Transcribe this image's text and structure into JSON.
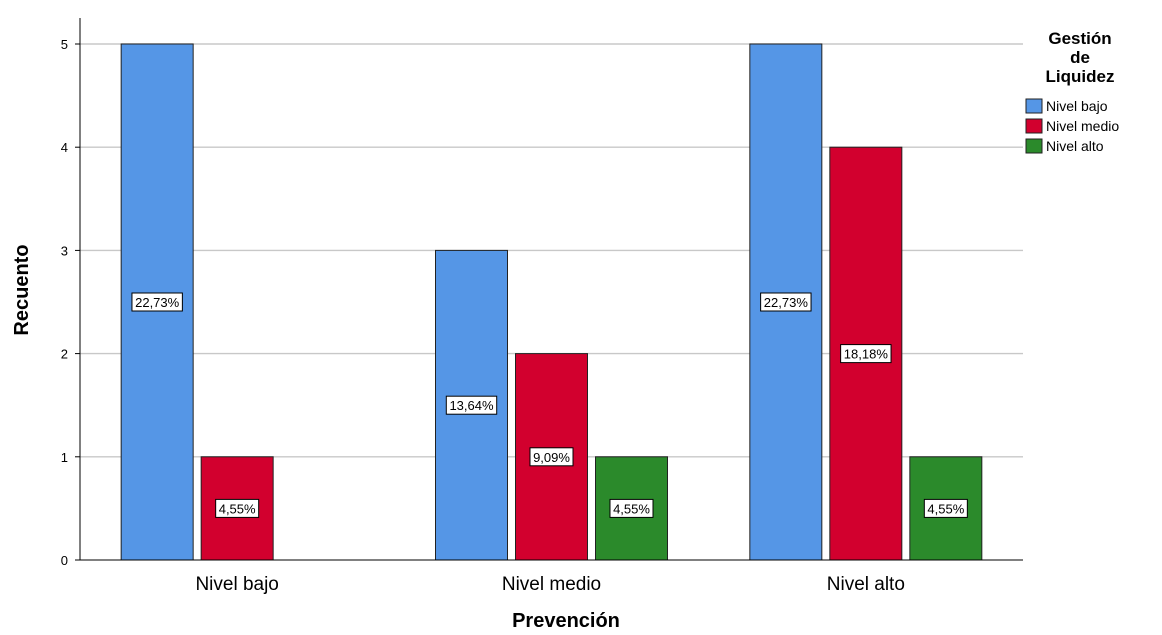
{
  "chart_data": {
    "type": "bar",
    "categories": [
      "Nivel bajo",
      "Nivel medio",
      "Nivel alto"
    ],
    "xlabel": "Prevención",
    "ylabel": "Recuento",
    "ylim": [
      0,
      5
    ],
    "yticks": [
      0,
      1,
      2,
      3,
      4,
      5
    ],
    "grid": true,
    "legend": {
      "title_lines": [
        "Gestión",
        "de",
        "Liquidez"
      ],
      "placement": "top-right"
    },
    "series": [
      {
        "name": "Nivel bajo",
        "color": "#5596e6",
        "values": [
          5,
          3,
          5
        ],
        "labels": [
          "22,73%",
          "13,64%",
          "22,73%"
        ]
      },
      {
        "name": "Nivel medio",
        "color": "#d2002e",
        "values": [
          1,
          2,
          4
        ],
        "labels": [
          "4,55%",
          "9,09%",
          "18,18%"
        ]
      },
      {
        "name": "Nivel alto",
        "color": "#2b8a2b",
        "values": [
          0,
          1,
          1
        ],
        "labels": [
          "",
          "4,55%",
          "4,55%"
        ]
      }
    ]
  }
}
